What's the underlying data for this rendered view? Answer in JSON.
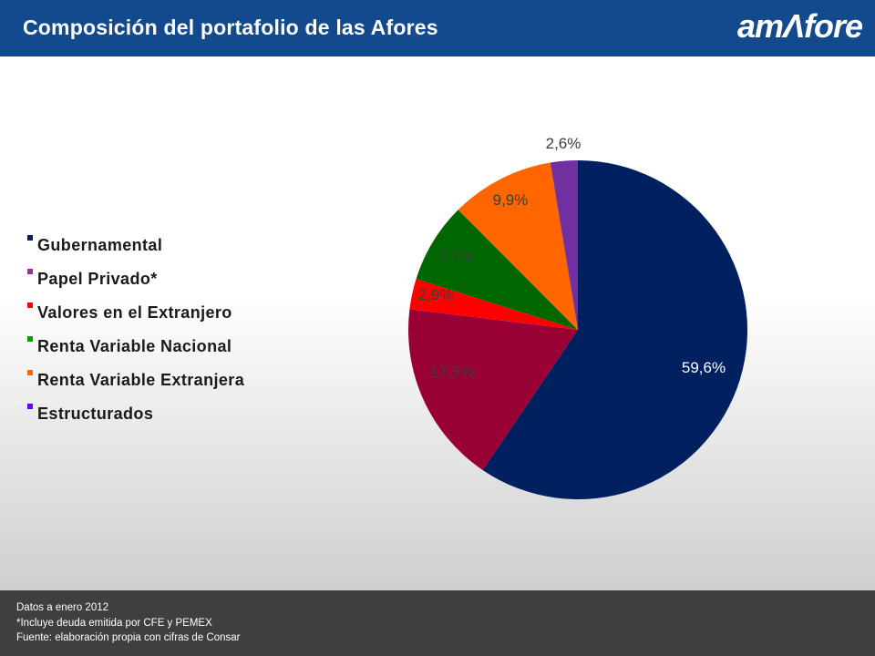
{
  "header": {
    "title": "Composición del portafolio de las Afores",
    "logo_text": "amΛfore"
  },
  "chart_data": {
    "type": "pie",
    "start_angle_deg": 0,
    "direction": "clockwise",
    "slices": [
      {
        "label": "Gubernamental",
        "value": 59.6,
        "display": "59,6%",
        "color": "#002060",
        "label_color": "#ffffff"
      },
      {
        "label": "Papel Privado*",
        "value": 17.5,
        "display": "17,5%",
        "color": "#990033",
        "label_color": "#3d3d3d"
      },
      {
        "label": "Valores en el Extranjero",
        "value": 2.9,
        "display": "2,9%",
        "color": "#ff0000",
        "label_color": "#3d3d3d"
      },
      {
        "label": "Renta Variable Nacional",
        "value": 7.7,
        "display": "7,7%",
        "color": "#006600",
        "label_color": "#3d3d3d"
      },
      {
        "label": "Renta Variable Extranjera",
        "value": 9.9,
        "display": "9,9%",
        "color": "#ff6600",
        "label_color": "#3d3d3d"
      },
      {
        "label": "Estructurados",
        "value": 2.6,
        "display": "2,6%",
        "color": "#7030a0",
        "label_color": "#3d3d3d"
      }
    ]
  },
  "legend": [
    {
      "label": "Gubernamental",
      "color": "#002060"
    },
    {
      "label": "Papel Privado*",
      "color": "#993399"
    },
    {
      "label": "Valores en el Extranjero",
      "color": "#ff0000"
    },
    {
      "label": "Renta Variable Nacional",
      "color": "#00a000"
    },
    {
      "label": "Renta Variable Extranjera",
      "color": "#ff6600"
    },
    {
      "label": "Estructurados",
      "color": "#6600ff"
    }
  ],
  "footer": {
    "line1": "Datos a enero 2012",
    "line2": "*Incluye deuda emitida por CFE y PEMEX",
    "line3": "Fuente: elaboración propia con cifras de Consar"
  }
}
